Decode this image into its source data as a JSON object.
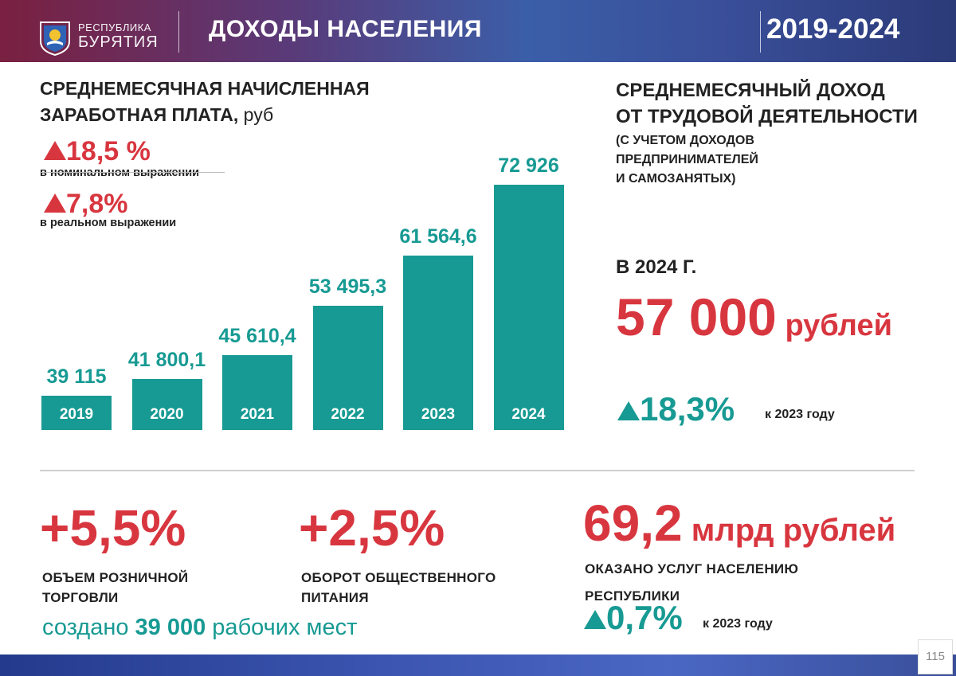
{
  "header": {
    "brand_line1": "РЕСПУБЛИКА",
    "brand_line2": "БУРЯТИЯ",
    "title": "ДОХОДЫ НАСЕЛЕНИЯ",
    "years": "2019-2024"
  },
  "salary": {
    "title_line1": "СРЕДНЕМЕСЯЧНАЯ НАЧИСЛЕННАЯ",
    "title_line2_bold": "ЗАРАБОТНАЯ ПЛАТА,",
    "title_line2_unit": " руб",
    "nominal_value": "18,5 %",
    "nominal_label": "в номинальном выражении",
    "real_value": "7,8%",
    "real_label": "в реальном выражении"
  },
  "chart_data": {
    "type": "bar",
    "title": "СРЕДНЕМЕСЯЧНАЯ НАЧИСЛЕННАЯ ЗАРАБОТНАЯ ПЛАТА, руб",
    "categories": [
      "2019",
      "2020",
      "2021",
      "2022",
      "2023",
      "2024"
    ],
    "values": [
      39115,
      41800.1,
      45610.4,
      53495.3,
      61564.6,
      72926
    ],
    "value_labels": [
      "39 115",
      "41 800,1",
      "45 610,4",
      "53 495,3",
      "61 564,6",
      "72 926"
    ],
    "bar_color": "#179a93"
  },
  "income": {
    "title_line1": "СРЕДНЕМЕСЯЧНЫЙ ДОХОД",
    "title_line2": "ОТ ТРУДОВОЙ ДЕЯТЕЛЬНОСТИ",
    "sub_line1": "(С УЧЕТОМ ДОХОДОВ",
    "sub_line2": "ПРЕДПРИНИМАТЕЛЕЙ",
    "sub_line3": "И САМОЗАНЯТЫХ)",
    "year_label": "В 2024 Г.",
    "amount": "57 000",
    "amount_unit": "рублей",
    "growth": "18,3%",
    "growth_label": "к 2023 году"
  },
  "retail": {
    "value": "+5,5%",
    "caption_line1": "ОБЪЕМ РОЗНИЧНОЙ",
    "caption_line2": "ТОРГОВЛИ"
  },
  "catering": {
    "value": "+2,5%",
    "caption_line1": "ОБОРОТ ОБЩЕСТВЕННОГО",
    "caption_line2": "ПИТАНИЯ"
  },
  "jobs": {
    "prefix": "создано ",
    "count": "39 000",
    "suffix": " рабочих мест"
  },
  "services": {
    "amount": "69,2",
    "unit": "млрд рублей",
    "caption_line1": "ОКАЗАНО УСЛУГ НАСЕЛЕНИЮ",
    "caption_line2": "РЕСПУБЛИКИ",
    "growth": "0,7%",
    "growth_label": "к 2023 году"
  },
  "colors": {
    "accent_red": "#d8363f",
    "accent_teal": "#179a93"
  },
  "page_number": "115"
}
